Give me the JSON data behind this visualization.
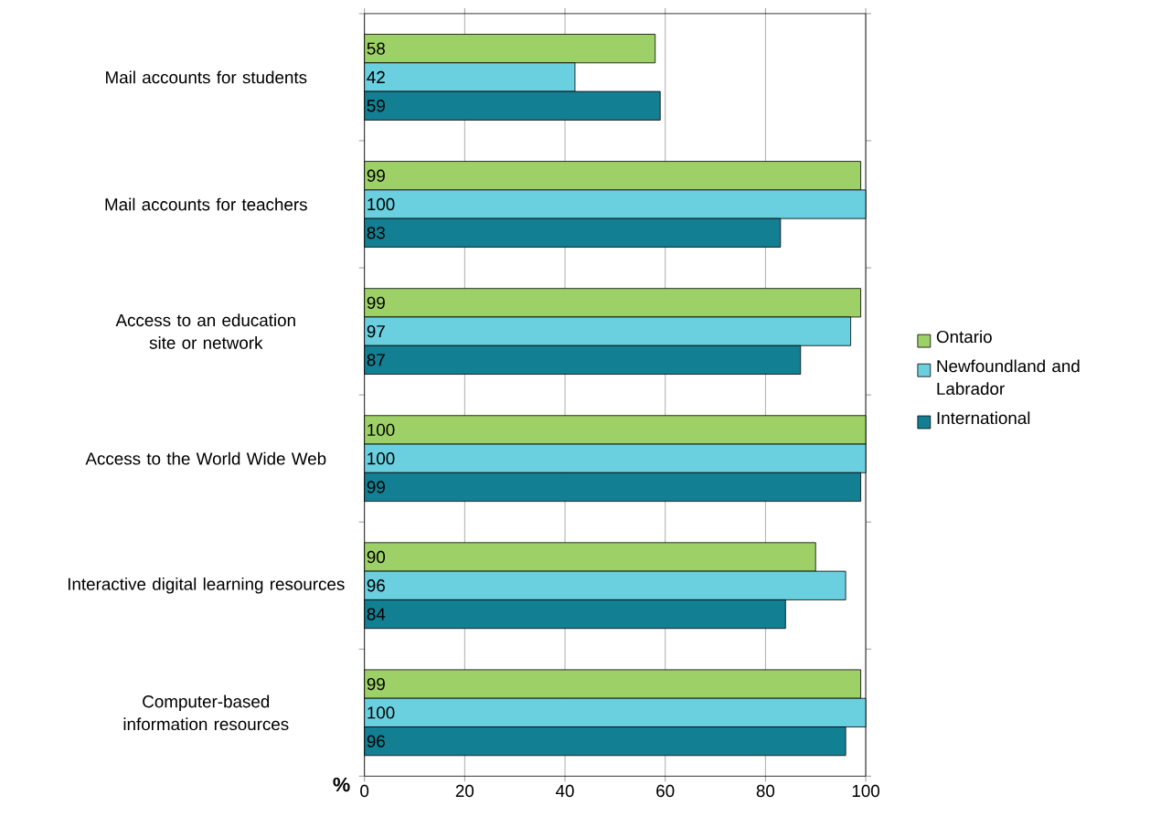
{
  "chart_data": {
    "type": "bar",
    "orientation": "horizontal",
    "xlabel": "%",
    "categories": [
      "Mail accounts for students",
      "Mail accounts for teachers",
      "Access to an education site or network",
      "Access to the World Wide Web",
      "Interactive digital learning resources",
      "Computer-based information resources"
    ],
    "series": [
      {
        "name": "Ontario",
        "color": "#9dd067",
        "values": [
          58,
          99,
          99,
          100,
          90,
          99
        ]
      },
      {
        "name": "Newfoundland and Labrador",
        "color": "#6acfde",
        "values": [
          42,
          100,
          97,
          100,
          96,
          100
        ]
      },
      {
        "name": "International",
        "color": "#127f93",
        "values": [
          59,
          83,
          87,
          99,
          84,
          96
        ]
      }
    ],
    "xlim": [
      0,
      100
    ],
    "xticks": [
      0,
      20,
      40,
      60,
      80,
      100
    ],
    "grid": "x",
    "legend": "right",
    "data_labels": true
  }
}
